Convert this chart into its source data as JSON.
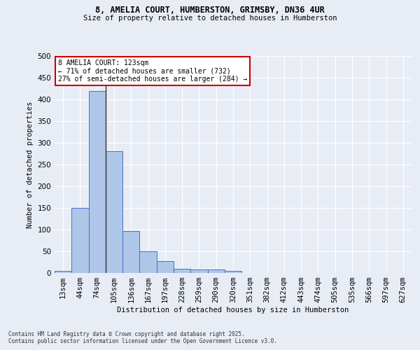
{
  "title_line1": "8, AMELIA COURT, HUMBERSTON, GRIMSBY, DN36 4UR",
  "title_line2": "Size of property relative to detached houses in Humberston",
  "xlabel": "Distribution of detached houses by size in Humberston",
  "ylabel": "Number of detached properties",
  "categories": [
    "13sqm",
    "44sqm",
    "74sqm",
    "105sqm",
    "136sqm",
    "167sqm",
    "197sqm",
    "228sqm",
    "259sqm",
    "290sqm",
    "320sqm",
    "351sqm",
    "382sqm",
    "412sqm",
    "443sqm",
    "474sqm",
    "505sqm",
    "535sqm",
    "566sqm",
    "597sqm",
    "627sqm"
  ],
  "values": [
    5,
    150,
    420,
    280,
    97,
    50,
    28,
    10,
    8,
    8,
    5,
    0,
    0,
    0,
    0,
    0,
    0,
    0,
    0,
    0,
    0
  ],
  "bar_color": "#aec6e8",
  "bar_edge_color": "#4472c4",
  "annotation_text": "8 AMELIA COURT: 123sqm\n← 71% of detached houses are smaller (732)\n27% of semi-detached houses are larger (284) →",
  "annotation_box_color": "#ffffff",
  "annotation_box_edge": "#cc0000",
  "vline_color": "#333333",
  "background_color": "#e8edf5",
  "grid_color": "#ffffff",
  "ylim": [
    0,
    500
  ],
  "yticks": [
    0,
    50,
    100,
    150,
    200,
    250,
    300,
    350,
    400,
    450,
    500
  ],
  "footer_line1": "Contains HM Land Registry data © Crown copyright and database right 2025.",
  "footer_line2": "Contains public sector information licensed under the Open Government Licence v3.0."
}
